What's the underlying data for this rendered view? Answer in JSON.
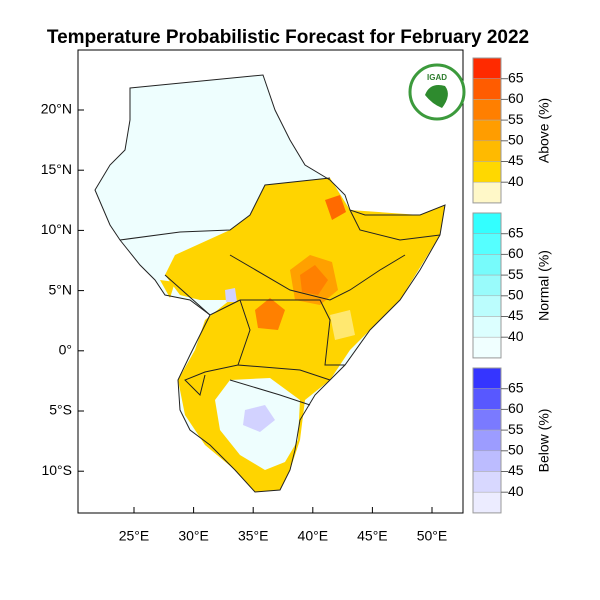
{
  "title": "Temperature Probabilistic Forecast for February 2022",
  "logo": {
    "text": "IGAD"
  },
  "lat_ticks": [
    "20°N",
    "15°N",
    "10°N",
    "5°N",
    "0°",
    "5°S",
    "10°S"
  ],
  "lon_ticks": [
    "25°E",
    "30°E",
    "35°E",
    "40°E",
    "45°E",
    "50°E"
  ],
  "legends": [
    {
      "title": "Above (%)",
      "ticks": [
        "65",
        "60",
        "55",
        "50",
        "45",
        "40"
      ],
      "colors": [
        "#ff2a00",
        "#ff5c00",
        "#ff7f00",
        "#ff9d00",
        "#ffba00",
        "#ffd800",
        "#fff8c8"
      ]
    },
    {
      "title": "Normal (%)",
      "ticks": [
        "65",
        "60",
        "55",
        "50",
        "45",
        "40"
      ],
      "colors": [
        "#33ffff",
        "#55ffff",
        "#77fbfb",
        "#99fbfb",
        "#bbfdfd",
        "#dcffff",
        "#f0ffff"
      ]
    },
    {
      "title": "Below (%)",
      "ticks": [
        "65",
        "60",
        "55",
        "50",
        "45",
        "40"
      ],
      "colors": [
        "#3535ff",
        "#5858ff",
        "#7a7aff",
        "#9c9cff",
        "#bcbcff",
        "#d8d8ff",
        "#ececff"
      ]
    }
  ]
}
